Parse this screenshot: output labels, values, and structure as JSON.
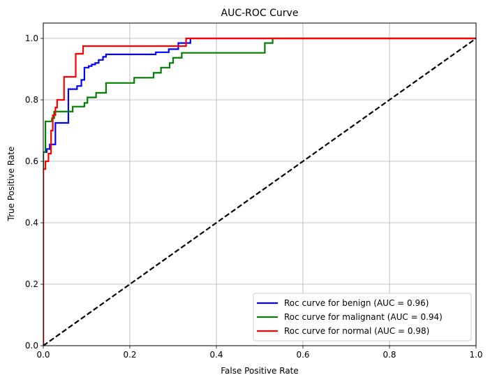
{
  "chart_data": {
    "type": "line",
    "title": "AUC-ROC Curve",
    "xlabel": "False Positive Rate",
    "ylabel": "True Positive Rate",
    "xlim": [
      0.0,
      1.0
    ],
    "ylim": [
      0.0,
      1.05
    ],
    "grid": true,
    "legend_position": "lower-right",
    "x_ticks": [
      "0.0",
      "0.2",
      "0.4",
      "0.6",
      "0.8",
      "1.0"
    ],
    "y_ticks": [
      "0.0",
      "0.2",
      "0.4",
      "0.6",
      "0.8",
      "1.0"
    ],
    "series": [
      {
        "name": "Roc curve for benign (AUC = 0.96)",
        "color": "#0000ff",
        "style": "solid",
        "points": [
          [
            0,
            0
          ],
          [
            0,
            0.63
          ],
          [
            0.008,
            0.63
          ],
          [
            0.008,
            0.64
          ],
          [
            0.015,
            0.64
          ],
          [
            0.015,
            0.655
          ],
          [
            0.028,
            0.655
          ],
          [
            0.028,
            0.725
          ],
          [
            0.058,
            0.725
          ],
          [
            0.058,
            0.835
          ],
          [
            0.078,
            0.835
          ],
          [
            0.078,
            0.845
          ],
          [
            0.088,
            0.845
          ],
          [
            0.088,
            0.865
          ],
          [
            0.095,
            0.865
          ],
          [
            0.095,
            0.905
          ],
          [
            0.105,
            0.905
          ],
          [
            0.105,
            0.91
          ],
          [
            0.112,
            0.91
          ],
          [
            0.112,
            0.915
          ],
          [
            0.12,
            0.915
          ],
          [
            0.12,
            0.92
          ],
          [
            0.128,
            0.92
          ],
          [
            0.128,
            0.93
          ],
          [
            0.138,
            0.93
          ],
          [
            0.138,
            0.94
          ],
          [
            0.145,
            0.94
          ],
          [
            0.145,
            0.948
          ],
          [
            0.26,
            0.948
          ],
          [
            0.26,
            0.955
          ],
          [
            0.29,
            0.955
          ],
          [
            0.29,
            0.965
          ],
          [
            0.312,
            0.965
          ],
          [
            0.312,
            0.985
          ],
          [
            0.34,
            0.985
          ],
          [
            0.34,
            1.0
          ],
          [
            1.0,
            1.0
          ]
        ]
      },
      {
        "name": "Roc curve for malignant (AUC = 0.94)",
        "color": "#008000",
        "style": "solid",
        "points": [
          [
            0,
            0
          ],
          [
            0,
            0.63
          ],
          [
            0.005,
            0.63
          ],
          [
            0.005,
            0.73
          ],
          [
            0.02,
            0.73
          ],
          [
            0.02,
            0.74
          ],
          [
            0.025,
            0.74
          ],
          [
            0.025,
            0.762
          ],
          [
            0.068,
            0.762
          ],
          [
            0.068,
            0.778
          ],
          [
            0.095,
            0.778
          ],
          [
            0.095,
            0.79
          ],
          [
            0.102,
            0.79
          ],
          [
            0.102,
            0.808
          ],
          [
            0.122,
            0.808
          ],
          [
            0.122,
            0.823
          ],
          [
            0.145,
            0.823
          ],
          [
            0.145,
            0.855
          ],
          [
            0.21,
            0.855
          ],
          [
            0.21,
            0.872
          ],
          [
            0.255,
            0.872
          ],
          [
            0.255,
            0.888
          ],
          [
            0.272,
            0.888
          ],
          [
            0.272,
            0.905
          ],
          [
            0.292,
            0.905
          ],
          [
            0.292,
            0.92
          ],
          [
            0.3,
            0.92
          ],
          [
            0.3,
            0.937
          ],
          [
            0.32,
            0.937
          ],
          [
            0.32,
            0.953
          ],
          [
            0.512,
            0.953
          ],
          [
            0.512,
            0.985
          ],
          [
            0.53,
            0.985
          ],
          [
            0.53,
            1.0
          ],
          [
            1.0,
            1.0
          ]
        ]
      },
      {
        "name": "Roc curve for normal (AUC = 0.98)",
        "color": "#ff0000",
        "style": "solid",
        "points": [
          [
            0,
            0
          ],
          [
            0,
            0.575
          ],
          [
            0.005,
            0.575
          ],
          [
            0.005,
            0.6
          ],
          [
            0.012,
            0.6
          ],
          [
            0.012,
            0.625
          ],
          [
            0.018,
            0.625
          ],
          [
            0.018,
            0.7
          ],
          [
            0.022,
            0.7
          ],
          [
            0.022,
            0.75
          ],
          [
            0.028,
            0.75
          ],
          [
            0.028,
            0.775
          ],
          [
            0.032,
            0.775
          ],
          [
            0.032,
            0.8
          ],
          [
            0.048,
            0.8
          ],
          [
            0.048,
            0.875
          ],
          [
            0.075,
            0.875
          ],
          [
            0.075,
            0.95
          ],
          [
            0.092,
            0.95
          ],
          [
            0.092,
            0.975
          ],
          [
            0.33,
            0.975
          ],
          [
            0.33,
            1.0
          ],
          [
            1.0,
            1.0
          ]
        ]
      },
      {
        "name": "",
        "color": "#000000",
        "style": "dashed",
        "points": [
          [
            0,
            0
          ],
          [
            1,
            1
          ]
        ]
      }
    ]
  }
}
